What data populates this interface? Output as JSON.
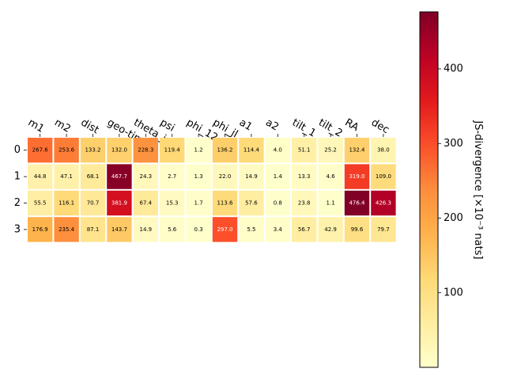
{
  "chart_data": {
    "type": "heatmap",
    "columns": [
      "m1",
      "m2",
      "dist",
      "geo-time",
      "theta_jn",
      "psi",
      "phi_12",
      "phi_jl",
      "a1",
      "a2",
      "tilt_1",
      "tilt_2",
      "RA",
      "dec"
    ],
    "rows": [
      "0",
      "1",
      "2",
      "3"
    ],
    "values": [
      [
        267.6,
        253.6,
        133.2,
        132.0,
        228.3,
        119.4,
        1.2,
        136.2,
        114.4,
        4.0,
        51.1,
        25.2,
        132.4,
        38.0
      ],
      [
        44.8,
        47.1,
        68.1,
        467.7,
        24.3,
        2.7,
        1.3,
        22.0,
        14.9,
        1.4,
        13.3,
        4.6,
        319.0,
        109.0
      ],
      [
        55.5,
        116.1,
        70.7,
        381.9,
        67.4,
        15.3,
        1.7,
        113.6,
        57.6,
        0.8,
        23.8,
        1.1,
        476.4,
        426.3
      ],
      [
        176.9,
        235.4,
        87.1,
        143.7,
        14.9,
        5.6,
        0.3,
        297.0,
        5.5,
        3.4,
        56.7,
        42.9,
        99.6,
        79.7
      ]
    ],
    "cell_labels": [
      [
        "267.6",
        "253.6",
        "133.2",
        "132.0",
        "228.3",
        "119.4",
        "1.2",
        "136.2",
        "114.4",
        "4.0",
        "51.1",
        "25.2",
        "132.4",
        "38.0"
      ],
      [
        "44.8",
        "47.1",
        "68.1",
        "467.7",
        "24.3",
        "2.7",
        "1.3",
        "22.0",
        "14.9",
        "1.4",
        "13.3",
        "4.6",
        "319.0",
        "109.0"
      ],
      [
        "55.5",
        "116.1",
        "70.7",
        "381.9",
        "67.4",
        "15.3",
        "1.7",
        "113.6",
        "57.6",
        "0.8",
        "23.8",
        "1.1",
        "476.4",
        "426.3"
      ],
      [
        "176.9",
        "235.4",
        "87.1",
        "143.7",
        "14.9",
        "5.6",
        "0.3",
        "297.0",
        "5.5",
        "3.4",
        "56.7",
        "42.9",
        "99.6",
        "79.7"
      ]
    ],
    "colormap": "YlOrRd",
    "vmin": 0,
    "vmax": 476.4,
    "colorbar": {
      "ticks": [
        100,
        200,
        300,
        400
      ],
      "tick_labels": [
        "100",
        "200",
        "300",
        "400"
      ],
      "label": "JS-divergence [×10⁻³ nats]"
    },
    "grid": false
  }
}
